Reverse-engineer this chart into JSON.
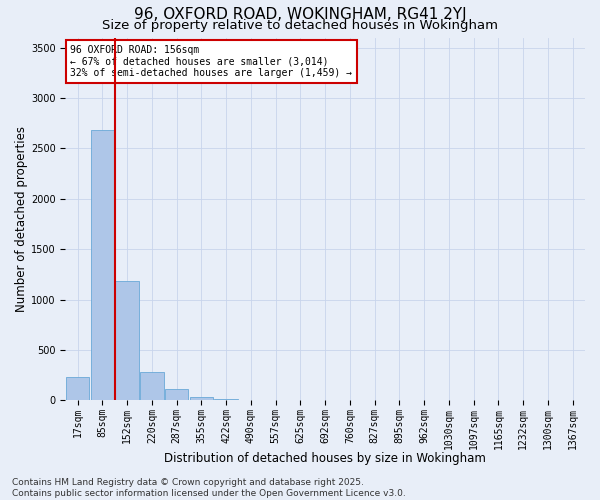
{
  "title_line1": "96, OXFORD ROAD, WOKINGHAM, RG41 2YJ",
  "title_line2": "Size of property relative to detached houses in Wokingham",
  "xlabel": "Distribution of detached houses by size in Wokingham",
  "ylabel": "Number of detached properties",
  "bar_color": "#aec6e8",
  "bar_edge_color": "#6aa8d8",
  "vline_color": "#cc0000",
  "background_color": "#e8eef8",
  "categories": [
    "17sqm",
    "85sqm",
    "152sqm",
    "220sqm",
    "287sqm",
    "355sqm",
    "422sqm",
    "490sqm",
    "557sqm",
    "625sqm",
    "692sqm",
    "760sqm",
    "827sqm",
    "895sqm",
    "962sqm",
    "1030sqm",
    "1097sqm",
    "1165sqm",
    "1232sqm",
    "1300sqm",
    "1367sqm"
  ],
  "values": [
    230,
    2680,
    1180,
    285,
    115,
    30,
    10,
    0,
    0,
    0,
    0,
    0,
    0,
    0,
    0,
    0,
    0,
    0,
    0,
    0,
    0
  ],
  "ylim": [
    0,
    3600
  ],
  "yticks": [
    0,
    500,
    1000,
    1500,
    2000,
    2500,
    3000,
    3500
  ],
  "annotation_title": "96 OXFORD ROAD: 156sqm",
  "annotation_line2": "← 67% of detached houses are smaller (3,014)",
  "annotation_line3": "32% of semi-detached houses are larger (1,459) →",
  "annotation_box_color": "#ffffff",
  "annotation_box_edge": "#cc0000",
  "footer_line1": "Contains HM Land Registry data © Crown copyright and database right 2025.",
  "footer_line2": "Contains public sector information licensed under the Open Government Licence v3.0.",
  "grid_color": "#c8d4ec",
  "title_fontsize": 11,
  "subtitle_fontsize": 9.5,
  "axis_label_fontsize": 8.5,
  "tick_fontsize": 7,
  "annotation_fontsize": 7,
  "footer_fontsize": 6.5
}
